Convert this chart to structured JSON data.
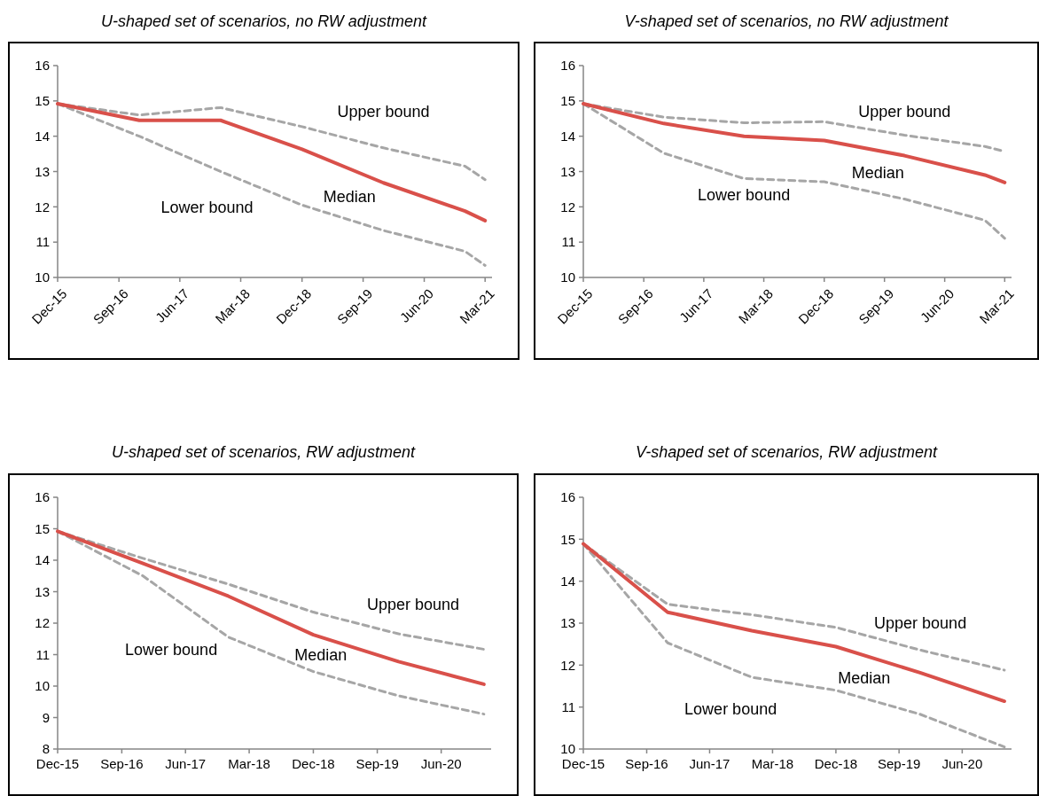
{
  "chart_data": [
    {
      "type": "line",
      "title": "U-shaped set of scenarios, no RW adjustment",
      "x": [
        "2015-12",
        "2016-12",
        "2017-12",
        "2018-12",
        "2019-12",
        "2020-12",
        "2021-03"
      ],
      "xlim": [
        "2015-12",
        "2021-04"
      ],
      "xticks": [
        {
          "value": "2015-12",
          "label": "Dec-15"
        },
        {
          "value": "2016-09",
          "label": "Sep-16"
        },
        {
          "value": "2017-06",
          "label": "Jun-17"
        },
        {
          "value": "2018-03",
          "label": "Mar-18"
        },
        {
          "value": "2018-12",
          "label": "Dec-18"
        },
        {
          "value": "2019-09",
          "label": "Sep-19"
        },
        {
          "value": "2020-06",
          "label": "Jun-20"
        },
        {
          "value": "2021-03",
          "label": "Mar-21"
        }
      ],
      "ylim": [
        10,
        16
      ],
      "yticks": [
        10,
        11,
        12,
        13,
        14,
        15,
        16
      ],
      "grid": false,
      "series": [
        {
          "name": "Upper bound",
          "color": "#a6a6a6",
          "line_style": "dashed",
          "values": [
            14.92,
            14.6,
            14.81,
            14.27,
            13.67,
            13.15,
            12.77
          ]
        },
        {
          "name": "Lower bound",
          "color": "#a6a6a6",
          "line_style": "dashed",
          "values": [
            14.92,
            14.0,
            13.0,
            12.05,
            11.33,
            10.74,
            10.34
          ]
        },
        {
          "name": "Median",
          "color": "#d9504a",
          "line_style": "solid",
          "values": [
            14.92,
            14.45,
            14.45,
            13.63,
            12.68,
            11.88,
            11.61
          ]
        }
      ]
    },
    {
      "type": "line",
      "title": "V-shaped set of scenarios, no RW adjustment",
      "x": [
        "2015-12",
        "2016-12",
        "2017-12",
        "2018-12",
        "2019-12",
        "2020-12",
        "2021-03"
      ],
      "xlim": [
        "2015-12",
        "2021-04"
      ],
      "xticks": [
        {
          "value": "2015-12",
          "label": "Dec-15"
        },
        {
          "value": "2016-09",
          "label": "Sep-16"
        },
        {
          "value": "2017-06",
          "label": "Jun-17"
        },
        {
          "value": "2018-03",
          "label": "Mar-18"
        },
        {
          "value": "2018-12",
          "label": "Dec-18"
        },
        {
          "value": "2019-09",
          "label": "Sep-19"
        },
        {
          "value": "2020-06",
          "label": "Jun-20"
        },
        {
          "value": "2021-03",
          "label": "Mar-21"
        }
      ],
      "ylim": [
        10,
        16
      ],
      "yticks": [
        10,
        11,
        12,
        13,
        14,
        15,
        16
      ],
      "grid": false,
      "series": [
        {
          "name": "Upper bound",
          "color": "#a6a6a6",
          "line_style": "dashed",
          "values": [
            14.92,
            14.54,
            14.38,
            14.41,
            14.03,
            13.71,
            13.57
          ]
        },
        {
          "name": "Lower bound",
          "color": "#a6a6a6",
          "line_style": "dashed",
          "values": [
            14.92,
            13.52,
            12.8,
            12.71,
            12.22,
            11.62,
            11.11
          ]
        },
        {
          "name": "Median",
          "color": "#d9504a",
          "line_style": "solid",
          "values": [
            14.92,
            14.36,
            14.0,
            13.88,
            13.45,
            12.9,
            12.69
          ]
        }
      ]
    },
    {
      "type": "line",
      "title": "U-shaped set of scenarios, RW adjustment",
      "x": [
        "2015-12",
        "2016-12",
        "2017-12",
        "2018-12",
        "2019-12",
        "2020-12"
      ],
      "xlim": [
        "2015-12",
        "2021-01"
      ],
      "xticks": [
        {
          "value": "2015-12",
          "label": "Dec-15"
        },
        {
          "value": "2016-09",
          "label": "Sep-16"
        },
        {
          "value": "2017-06",
          "label": "Jun-17"
        },
        {
          "value": "2018-03",
          "label": "Mar-18"
        },
        {
          "value": "2018-12",
          "label": "Dec-18"
        },
        {
          "value": "2019-09",
          "label": "Sep-19"
        },
        {
          "value": "2020-06",
          "label": "Jun-20"
        }
      ],
      "ylim": [
        8,
        16
      ],
      "yticks": [
        8,
        9,
        10,
        11,
        12,
        13,
        14,
        15,
        16
      ],
      "grid": false,
      "series": [
        {
          "name": "Upper bound",
          "color": "#a6a6a6",
          "line_style": "dashed",
          "values": [
            14.92,
            14.06,
            13.24,
            12.35,
            11.66,
            11.17
          ]
        },
        {
          "name": "Lower bound",
          "color": "#a6a6a6",
          "line_style": "dashed",
          "values": [
            14.92,
            13.5,
            11.56,
            10.46,
            9.69,
            9.11
          ]
        },
        {
          "name": "Median",
          "color": "#d9504a",
          "line_style": "solid",
          "values": [
            14.92,
            13.9,
            12.86,
            11.63,
            10.78,
            10.06
          ]
        }
      ]
    },
    {
      "type": "line",
      "title": "V-shaped set of scenarios, RW adjustment",
      "x": [
        "2015-12",
        "2016-12",
        "2017-12",
        "2018-12",
        "2019-12",
        "2020-12"
      ],
      "xlim": [
        "2015-12",
        "2021-01"
      ],
      "xticks": [
        {
          "value": "2015-12",
          "label": "Dec-15"
        },
        {
          "value": "2016-09",
          "label": "Sep-16"
        },
        {
          "value": "2017-06",
          "label": "Jun-17"
        },
        {
          "value": "2018-03",
          "label": "Mar-18"
        },
        {
          "value": "2018-12",
          "label": "Dec-18"
        },
        {
          "value": "2019-09",
          "label": "Sep-19"
        },
        {
          "value": "2020-06",
          "label": "Jun-20"
        }
      ],
      "ylim": [
        10,
        16
      ],
      "yticks": [
        10,
        11,
        12,
        13,
        14,
        15,
        16
      ],
      "grid": false,
      "series": [
        {
          "name": "Upper bound",
          "color": "#a6a6a6",
          "line_style": "dashed",
          "values": [
            14.89,
            13.45,
            13.2,
            12.9,
            12.36,
            11.88
          ]
        },
        {
          "name": "Lower bound",
          "color": "#a6a6a6",
          "line_style": "dashed",
          "values": [
            14.89,
            12.53,
            11.71,
            11.4,
            10.83,
            10.05
          ]
        },
        {
          "name": "Median",
          "color": "#d9504a",
          "line_style": "solid",
          "values": [
            14.89,
            13.26,
            12.82,
            12.44,
            11.82,
            11.14
          ]
        }
      ]
    }
  ]
}
